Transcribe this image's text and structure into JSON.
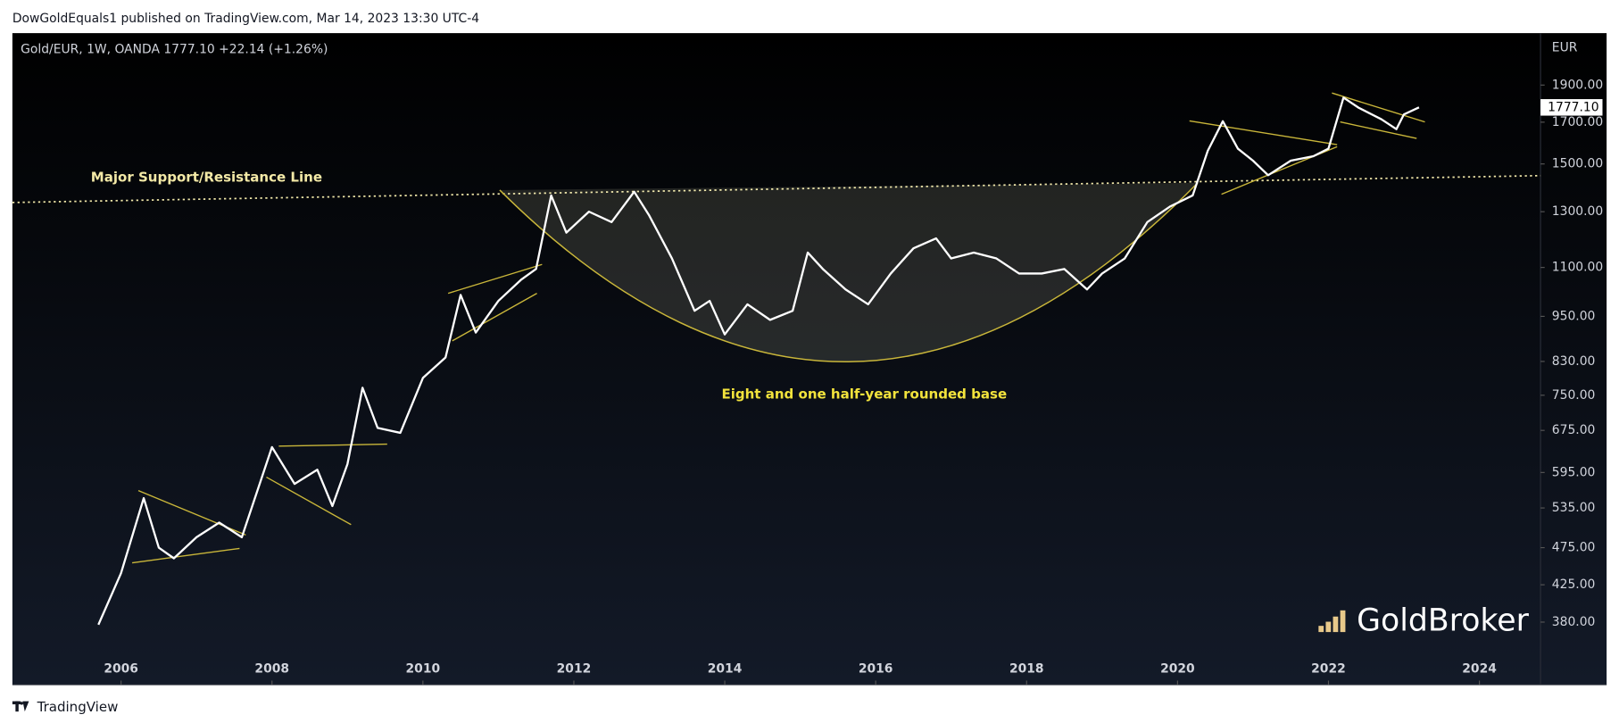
{
  "header": "DowGoldEquals1 published on TradingView.com, Mar 14, 2023 13:30 UTC-4",
  "footer": "TradingView",
  "watermark": "GoldBroker",
  "chart_data": {
    "type": "line",
    "title": "Gold/EUR, 1W, OANDA  1777.10  +22.14 (+1.26%)",
    "y_axis_label": "EUR",
    "annotations": [
      "Major Support/Resistance Line",
      "Eight and one half-year rounded base"
    ],
    "log_scale": true,
    "grid": false,
    "color": "#ffffff",
    "x": [
      2005.7,
      2006.0,
      2006.3,
      2006.5,
      2006.7,
      2007.0,
      2007.3,
      2007.6,
      2008.0,
      2008.3,
      2008.6,
      2008.8,
      2009.0,
      2009.2,
      2009.4,
      2009.7,
      2010.0,
      2010.3,
      2010.5,
      2010.7,
      2011.0,
      2011.3,
      2011.5,
      2011.7,
      2011.9,
      2012.2,
      2012.5,
      2012.8,
      2013.0,
      2013.3,
      2013.6,
      2013.8,
      2014.0,
      2014.3,
      2014.6,
      2014.9,
      2015.1,
      2015.3,
      2015.6,
      2015.9,
      2016.2,
      2016.5,
      2016.8,
      2017.0,
      2017.3,
      2017.6,
      2017.9,
      2018.2,
      2018.5,
      2018.8,
      2019.0,
      2019.3,
      2019.6,
      2019.9,
      2020.2,
      2020.4,
      2020.6,
      2020.8,
      2021.0,
      2021.2,
      2021.5,
      2021.8,
      2022.0,
      2022.2,
      2022.4,
      2022.7,
      2022.9,
      2023.0,
      2023.2
    ],
    "values": [
      377,
      440,
      551,
      475,
      460,
      490,
      512,
      490,
      642,
      575,
      600,
      538,
      610,
      767,
      680,
      670,
      790,
      840,
      1013,
      905,
      995,
      1060,
      1095,
      1365,
      1221,
      1300,
      1260,
      1380,
      1285,
      1130,
      966,
      995,
      900,
      985,
      940,
      966,
      1150,
      1095,
      1030,
      985,
      1080,
      1165,
      1200,
      1130,
      1150,
      1130,
      1080,
      1080,
      1095,
      1030,
      1080,
      1130,
      1260,
      1320,
      1365,
      1560,
      1705,
      1570,
      1515,
      1450,
      1515,
      1535,
      1570,
      1830,
      1775,
      1715,
      1665,
      1740,
      1777.1
    ],
    "last_price": {
      "value": 1777.1,
      "label": "1777.10"
    },
    "xlim": [
      2004.56,
      2024.81
    ],
    "xticks": [
      2006,
      2008,
      2010,
      2012,
      2014,
      2016,
      2018,
      2020,
      2022,
      2024
    ],
    "ylim": [
      315,
      2220
    ],
    "yticks": [
      {
        "value": 380,
        "label": "380.00"
      },
      {
        "value": 425,
        "label": "425.00"
      },
      {
        "value": 475,
        "label": "475.00"
      },
      {
        "value": 535,
        "label": "535.00"
      },
      {
        "value": 595,
        "label": "595.00"
      },
      {
        "value": 675,
        "label": "675.00"
      },
      {
        "value": 750,
        "label": "750.00"
      },
      {
        "value": 830,
        "label": "830.00"
      },
      {
        "value": 950,
        "label": "950.00"
      },
      {
        "value": 1100,
        "label": "1100.00"
      },
      {
        "value": 1300,
        "label": "1300.00"
      },
      {
        "value": 1500,
        "label": "1500.00"
      },
      {
        "value": 1700,
        "label": "1700.00"
      },
      {
        "value": 1900,
        "label": "1900.00"
      }
    ]
  }
}
